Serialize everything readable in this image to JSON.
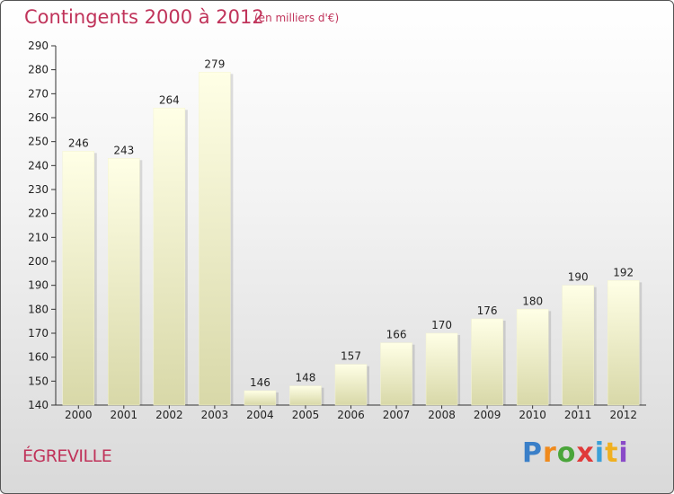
{
  "header": {
    "title": "Contingents 2000 à 2012",
    "subtitle": "(en milliers d'€)"
  },
  "footer": {
    "commune": "ÉGREVILLE",
    "logo": "Proxiti"
  },
  "colors": {
    "title": "#c0335a",
    "bar_light": "#ffffe4",
    "bar_dark": "#d6d6a6"
  },
  "chart_data": {
    "type": "bar",
    "title": "Contingents 2000 à 2012",
    "subtitle": "(en milliers d'€)",
    "xlabel": "",
    "ylabel": "",
    "categories": [
      "2000",
      "2001",
      "2002",
      "2003",
      "2004",
      "2005",
      "2006",
      "2007",
      "2008",
      "2009",
      "2010",
      "2011",
      "2012"
    ],
    "values": [
      246,
      243,
      264,
      279,
      146,
      148,
      157,
      166,
      170,
      176,
      180,
      190,
      192
    ],
    "ylim": [
      140,
      290
    ],
    "yticks": [
      140,
      150,
      160,
      170,
      180,
      190,
      200,
      210,
      220,
      230,
      240,
      250,
      260,
      270,
      280,
      290
    ],
    "grid": false,
    "legend": "none"
  }
}
